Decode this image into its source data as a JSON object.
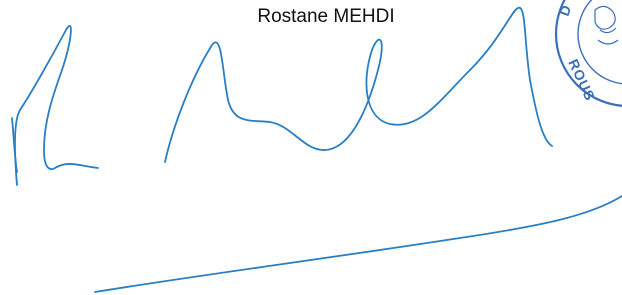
{
  "signature_block": {
    "name": "Rostane MEHDI",
    "stamp_letters": [
      "D",
      "ROUS"
    ]
  }
}
